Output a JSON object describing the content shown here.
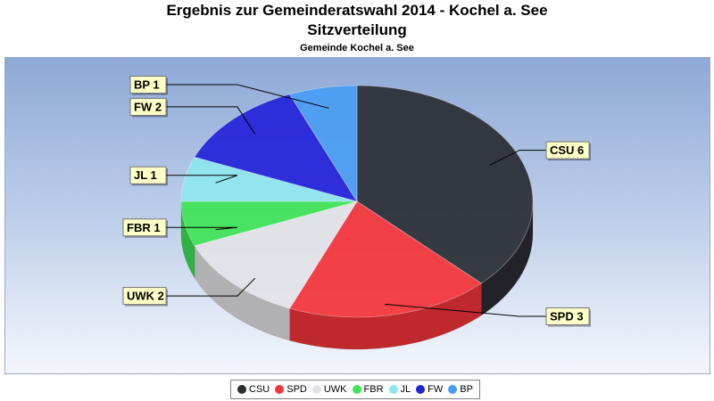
{
  "chart_data": {
    "type": "pie",
    "title": "Ergebnis zur Gemeinderatswahl 2014 - Kochel a. See",
    "subtitle": "Sitzverteilung",
    "caption": "Gemeinde Kochel a. See",
    "slices": [
      {
        "name": "CSU",
        "value": 6,
        "label": "CSU 6",
        "color": "#2a2d34"
      },
      {
        "name": "SPD",
        "value": 3,
        "label": "SPD 3",
        "color": "#f5343a"
      },
      {
        "name": "UWK",
        "value": 2,
        "label": "UWK 2",
        "color": "#e3e3e7"
      },
      {
        "name": "FBR",
        "value": 1,
        "label": "FBR 1",
        "color": "#3ee455"
      },
      {
        "name": "JL",
        "value": 1,
        "label": "JL 1",
        "color": "#8fe6ee"
      },
      {
        "name": "FW",
        "value": 2,
        "label": "FW 2",
        "color": "#2323d8"
      },
      {
        "name": "BP",
        "value": 1,
        "label": "BP 1",
        "color": "#4a9cf2"
      }
    ],
    "legend_position": "bottom"
  }
}
